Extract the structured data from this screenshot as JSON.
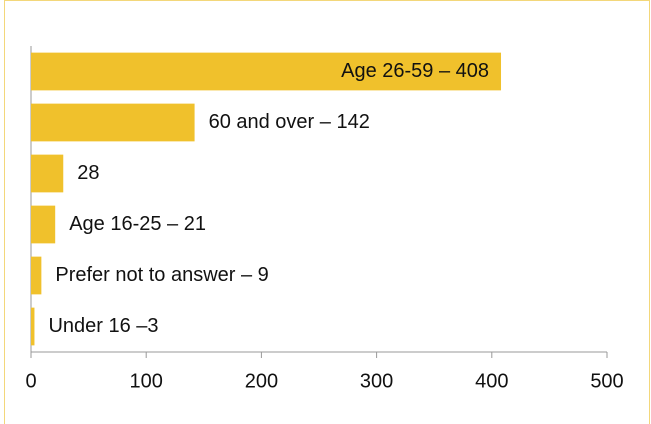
{
  "chart_data": {
    "type": "bar",
    "orientation": "horizontal",
    "values": [
      408,
      142,
      28,
      21,
      9,
      3
    ],
    "value_labels": [
      "Age 26-59 – 408",
      "60 and over – 142",
      "28",
      "Age 16-25 – 21",
      "Prefer not to answer – 9",
      "Under 16 –3"
    ],
    "color": "#f0c12c",
    "xlim": [
      0,
      500
    ],
    "xticks": [
      0,
      100,
      200,
      300,
      400,
      500
    ]
  }
}
